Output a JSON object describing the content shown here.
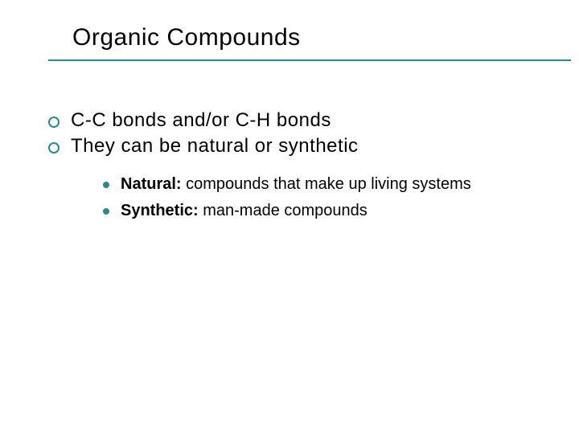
{
  "slide": {
    "title": "Organic Compounds",
    "accent_color": "#2a8a8a",
    "background_color": "#ffffff",
    "text_color": "#000000",
    "title_fontsize": 30,
    "body_fontsize": 24,
    "sub_fontsize": 20,
    "bullets": [
      {
        "text": "C-C bonds and/or C-H bonds"
      },
      {
        "text": "They can be natural or synthetic"
      }
    ],
    "sub_bullets": [
      {
        "bold": "Natural:",
        "rest": " compounds that make up living systems"
      },
      {
        "bold": "Synthetic:",
        "rest": " man-made compounds"
      }
    ]
  }
}
